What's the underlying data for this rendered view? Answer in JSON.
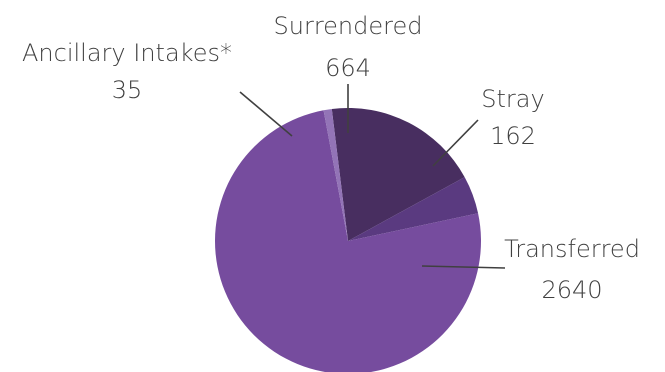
{
  "chart_data": {
    "type": "pie",
    "slices": [
      {
        "name": "Surrendered",
        "value": 664,
        "color": "#482E60"
      },
      {
        "name": "Stray",
        "value": 162,
        "color": "#5A3A80"
      },
      {
        "name": "Transferred",
        "value": 2640,
        "color": "#764C9E"
      },
      {
        "name": "Ancillary Intakes*",
        "value": 35,
        "color": "#9374B7"
      }
    ],
    "data_labels": [
      {
        "name": "Surrendered",
        "value": "664"
      },
      {
        "name": "Stray",
        "value": "162"
      },
      {
        "name": "Transferred",
        "value": "2640"
      },
      {
        "name": "Ancillary Intakes*",
        "value": "35"
      }
    ]
  }
}
